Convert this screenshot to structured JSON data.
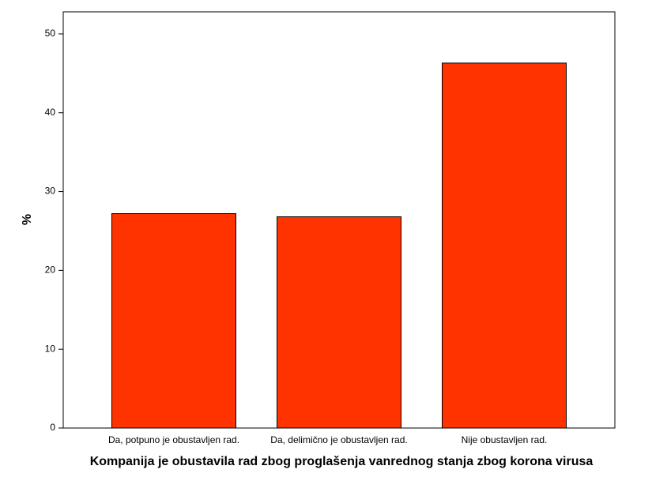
{
  "chart_data": {
    "type": "bar",
    "x_label": "Kompanija je obustavila rad zbog proglašenja vanrednog stanja zbog korona virusa",
    "y_label": "%",
    "categories": [
      "Da, potpuno je obustavljen rad.",
      "Da, delimično je obustavljen rad.",
      "Nije obustavljen rad."
    ],
    "values": [
      27.2,
      26.8,
      46.3
    ],
    "color": "#ff3300",
    "ylim": [
      0,
      52.8
    ],
    "yticks": [
      0,
      10,
      20,
      30,
      40,
      50
    ],
    "grid": false
  }
}
